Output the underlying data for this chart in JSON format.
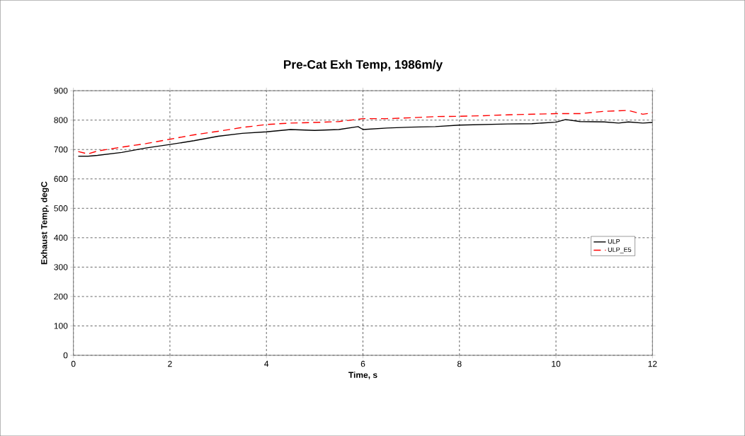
{
  "chart_data": {
    "type": "line",
    "title": "Pre-Cat Exh Temp, 1986m/y",
    "xlabel": "Time, s",
    "ylabel": "Exhaust Temp, degC",
    "xlim": [
      0,
      12
    ],
    "xticks": [
      0,
      2,
      4,
      6,
      8,
      10,
      12
    ],
    "ylim": [
      0,
      900
    ],
    "yticks": [
      0,
      100,
      200,
      300,
      400,
      500,
      600,
      700,
      800,
      900
    ],
    "grid": true,
    "legend": "right",
    "marker": "none",
    "series": [
      {
        "name": "ULP",
        "color": "#000000",
        "line_style": "solid",
        "x": [
          0.1,
          0.3,
          0.5,
          1.0,
          1.5,
          2.0,
          2.5,
          3.0,
          3.5,
          4.0,
          4.5,
          5.0,
          5.5,
          5.9,
          6.0,
          6.5,
          7.0,
          7.5,
          8.0,
          8.5,
          9.0,
          9.5,
          10.0,
          10.2,
          10.5,
          11.0,
          11.3,
          11.5,
          11.8,
          12.0
        ],
        "values": [
          677,
          677,
          680,
          690,
          705,
          717,
          730,
          745,
          755,
          760,
          768,
          765,
          768,
          778,
          768,
          773,
          776,
          778,
          783,
          785,
          787,
          788,
          793,
          802,
          795,
          794,
          790,
          794,
          790,
          792
        ]
      },
      {
        "name": "ULP_E5",
        "color": "#ff0000",
        "line_style": "dashed",
        "x": [
          0.1,
          0.3,
          0.5,
          1.0,
          1.5,
          2.0,
          2.5,
          3.0,
          3.5,
          4.0,
          4.5,
          5.0,
          5.5,
          6.0,
          6.5,
          7.0,
          7.5,
          8.0,
          8.5,
          9.0,
          9.5,
          10.0,
          10.5,
          11.0,
          11.5,
          11.8,
          12.0
        ],
        "values": [
          693,
          685,
          695,
          708,
          720,
          735,
          750,
          762,
          775,
          785,
          790,
          792,
          795,
          805,
          805,
          808,
          812,
          813,
          815,
          818,
          820,
          822,
          822,
          830,
          833,
          820,
          825
        ]
      }
    ]
  }
}
